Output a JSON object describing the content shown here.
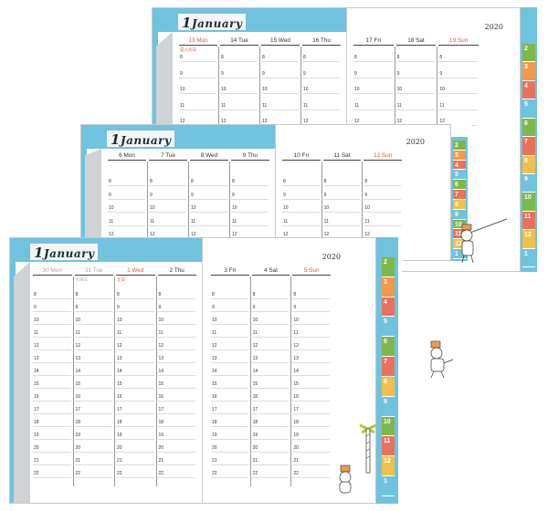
{
  "month": {
    "num": "1",
    "name": "January"
  },
  "year": "2020",
  "hours": [
    "8",
    "9",
    "10",
    "11",
    "12",
    "13",
    "14",
    "15",
    "16",
    "17",
    "18",
    "19",
    "20",
    "21",
    "22"
  ],
  "back_spread": {
    "left_days": [
      {
        "label": "13  Mon",
        "color": "red",
        "note": "成人の日"
      },
      {
        "label": "14  Tue",
        "color": "normal"
      },
      {
        "label": "15  Wed",
        "color": "normal"
      },
      {
        "label": "16  Thu",
        "color": "normal"
      }
    ],
    "right_days": [
      {
        "label": "17  Fri",
        "color": "normal"
      },
      {
        "label": "18  Sat",
        "color": "normal"
      },
      {
        "label": "19  Sun",
        "color": "red"
      }
    ]
  },
  "mid_spread": {
    "left_days": [
      {
        "label": "6  Mon",
        "color": "normal"
      },
      {
        "label": "7  Tue",
        "color": "normal"
      },
      {
        "label": "8  Wed",
        "color": "normal"
      },
      {
        "label": "9  Thu",
        "color": "normal"
      }
    ],
    "right_days": [
      {
        "label": "10  Fri",
        "color": "normal"
      },
      {
        "label": "11  Sat",
        "color": "normal"
      },
      {
        "label": "12  Sun",
        "color": "red"
      }
    ]
  },
  "front_spread": {
    "left_days": [
      {
        "label": "30  Mon",
        "color": "grey"
      },
      {
        "label": "31  Tue",
        "color": "grey",
        "note": "大晦日"
      },
      {
        "label": "1  Wed",
        "color": "red",
        "note": "元日"
      },
      {
        "label": "2  Thu",
        "color": "normal"
      }
    ],
    "right_days": [
      {
        "label": "3  Fri",
        "color": "normal"
      },
      {
        "label": "4  Sat",
        "color": "normal"
      },
      {
        "label": "5  Sun",
        "color": "red"
      }
    ]
  },
  "month_tabs": [
    {
      "label": "2",
      "color": "#7fb84a"
    },
    {
      "label": "3",
      "color": "#f09a4a"
    },
    {
      "label": "4",
      "color": "#e8735a"
    },
    {
      "label": "5",
      "color": "#6fc3df"
    },
    {
      "label": "6",
      "color": "#7fb84a"
    },
    {
      "label": "7",
      "color": "#e8735a"
    },
    {
      "label": "8",
      "color": "#f0c04a"
    },
    {
      "label": "9",
      "color": "#6fc3df"
    },
    {
      "label": "10",
      "color": "#7fb84a"
    },
    {
      "label": "11",
      "color": "#e8735a"
    },
    {
      "label": "12",
      "color": "#f0c04a"
    },
    {
      "label": "1",
      "color": "#6fc3df"
    }
  ],
  "colors": {
    "accent_blue": "#6fc3df",
    "sunday_red": "#e25a35",
    "spine_grey": "#cfd3d6"
  },
  "icons": [
    "cat-character-icon",
    "palm-tree-icon",
    "balloon-man-icon"
  ]
}
